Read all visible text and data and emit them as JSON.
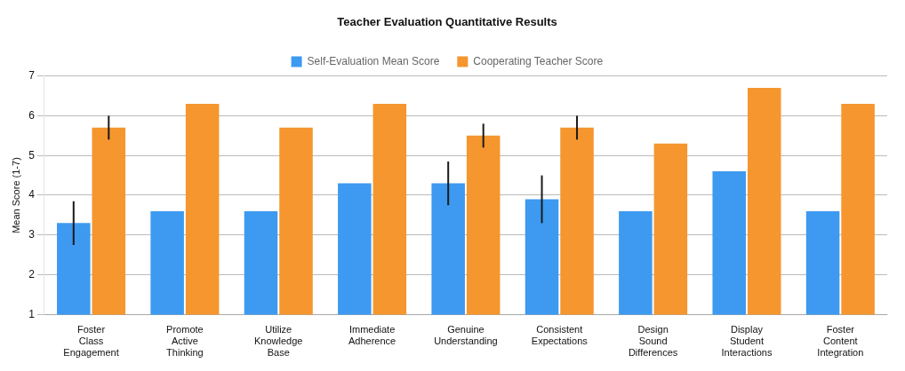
{
  "chart_data": {
    "type": "bar",
    "title": "Teacher Evaluation Quantitative Results",
    "ylabel": "Mean Score (1-7)",
    "categories": [
      "Foster Class Engagement",
      "Promote Active Thinking",
      "Utilize Knowledge Base",
      "Immediate Adherence",
      "Genuine Understanding",
      "Consistent Expectations",
      "Design Sound Differences",
      "Display Student Interactions",
      "Foster Content Integration"
    ],
    "series": [
      {
        "name": "Self-Evaluation Mean Score",
        "color": "#3d9af0",
        "values": [
          3.3,
          3.6,
          3.6,
          4.3,
          4.3,
          3.9,
          3.6,
          4.6,
          3.6
        ],
        "errors": [
          0.55,
          null,
          null,
          null,
          0.55,
          0.6,
          null,
          null,
          null
        ]
      },
      {
        "name": "Cooperating Teacher Score",
        "color": "#f5962e",
        "values": [
          5.7,
          6.3,
          5.7,
          6.3,
          5.5,
          5.7,
          5.3,
          6.7,
          6.3
        ],
        "errors": [
          0.3,
          null,
          null,
          null,
          0.3,
          0.3,
          null,
          null,
          null
        ]
      }
    ],
    "ylim": [
      1,
      7
    ],
    "yticks": [
      1,
      2,
      3,
      4,
      5,
      6,
      7
    ],
    "grid": "y",
    "legend": "top"
  }
}
